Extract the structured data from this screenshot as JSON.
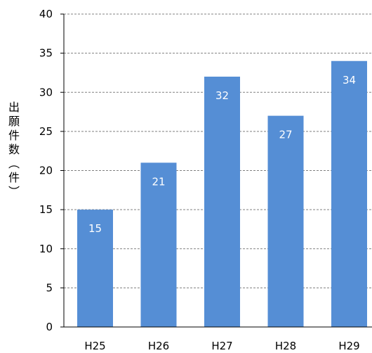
{
  "chart_data": {
    "type": "bar",
    "title": "",
    "xlabel": "",
    "ylabel": "出願件数(件)",
    "categories": [
      "H25",
      "H26",
      "H27",
      "H28",
      "H29"
    ],
    "values": [
      15,
      21,
      32,
      27,
      34
    ],
    "ylim": [
      0,
      40
    ],
    "yticks": [
      0,
      5,
      10,
      15,
      20,
      25,
      30,
      35,
      40
    ],
    "grid": true,
    "legend": "none",
    "data_labels": true,
    "colors": {
      "bar": "#558ED5",
      "grid": "#808080",
      "axis": "#000000",
      "label": "#ffffff"
    }
  }
}
